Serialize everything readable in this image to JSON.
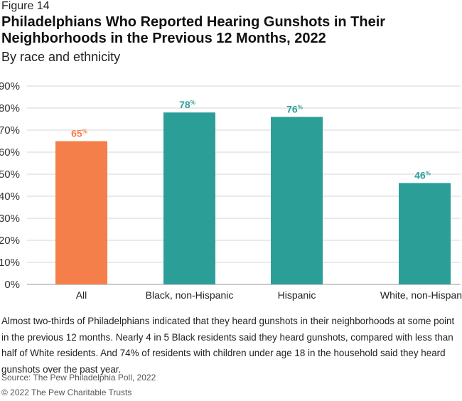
{
  "figure_label": "Figure 14",
  "chart_data": {
    "type": "bar",
    "title": "Philadelphians Who Reported Hearing Gunshots in Their Neighborhoods in the Previous 12 Months, 2022",
    "subtitle": "By race and ethnicity",
    "categories": [
      "All",
      "Black, non-Hispanic",
      "Hispanic",
      "White, non-Hispanic"
    ],
    "values": [
      65,
      78,
      76,
      46
    ],
    "data_labels": [
      "65",
      "78",
      "76",
      "46"
    ],
    "data_label_suffix": "%",
    "colors": [
      "#F47F4B",
      "#2C9E98",
      "#2C9E98",
      "#2C9E98"
    ],
    "ylim": [
      0,
      90
    ],
    "yticks": [
      "0%",
      "10%",
      "20%",
      "30%",
      "40%",
      "50%",
      "60%",
      "70%",
      "80%",
      "90%"
    ],
    "grid": true,
    "xlabel": "",
    "ylabel": ""
  },
  "note": "Almost two-thirds of Philadelphians indicated that they heard gunshots in their neighborhoods at some point in the previous 12 months. Nearly 4 in 5 Black residents said they heard gunshots, compared with less than half of White residents. And 74% of residents with children under age 18 in the household said they heard gunshots over the past year.",
  "source": "Source: The Pew Philadelphia Poll, 2022",
  "copyright": "© 2022 The Pew Charitable Trusts"
}
